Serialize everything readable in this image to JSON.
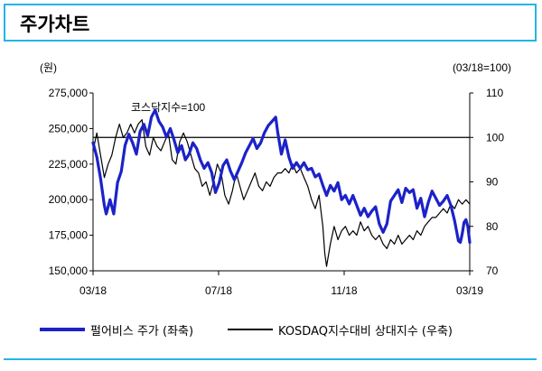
{
  "header": {
    "title": "주가차트"
  },
  "chart_data": {
    "type": "line",
    "left_unit": "(원)",
    "right_unit": "(03/18=100)",
    "annotation": "코스닥지수=100",
    "reference_value": 100,
    "x_labels": [
      "03/18",
      "07/18",
      "11/18",
      "03/19"
    ],
    "left_axis": {
      "min": 150000,
      "max": 275000,
      "ticks": [
        "275,000",
        "250,000",
        "225,000",
        "200,000",
        "175,000",
        "150,000"
      ]
    },
    "right_axis": {
      "min": 70,
      "max": 110,
      "ticks": [
        "110",
        "100",
        "90",
        "80",
        "70"
      ]
    },
    "series": [
      {
        "name": "펄어비스 주가 (좌축)",
        "axis": "left",
        "color": "#1c22c8",
        "values": [
          [
            0,
            240000
          ],
          [
            0.01,
            230000
          ],
          [
            0.02,
            215000
          ],
          [
            0.03,
            196000
          ],
          [
            0.035,
            190000
          ],
          [
            0.045,
            200000
          ],
          [
            0.055,
            190000
          ],
          [
            0.065,
            212000
          ],
          [
            0.075,
            220000
          ],
          [
            0.085,
            238000
          ],
          [
            0.095,
            246000
          ],
          [
            0.105,
            240000
          ],
          [
            0.115,
            232000
          ],
          [
            0.125,
            248000
          ],
          [
            0.135,
            253000
          ],
          [
            0.145,
            245000
          ],
          [
            0.155,
            258000
          ],
          [
            0.165,
            263000
          ],
          [
            0.175,
            255000
          ],
          [
            0.185,
            251000
          ],
          [
            0.195,
            244000
          ],
          [
            0.205,
            250000
          ],
          [
            0.215,
            242000
          ],
          [
            0.225,
            233000
          ],
          [
            0.235,
            238000
          ],
          [
            0.245,
            228000
          ],
          [
            0.255,
            232000
          ],
          [
            0.265,
            240000
          ],
          [
            0.275,
            236000
          ],
          [
            0.285,
            228000
          ],
          [
            0.295,
            222000
          ],
          [
            0.305,
            226000
          ],
          [
            0.315,
            219000
          ],
          [
            0.325,
            205000
          ],
          [
            0.335,
            212000
          ],
          [
            0.345,
            224000
          ],
          [
            0.355,
            228000
          ],
          [
            0.365,
            220000
          ],
          [
            0.375,
            214000
          ],
          [
            0.385,
            220000
          ],
          [
            0.395,
            226000
          ],
          [
            0.405,
            233000
          ],
          [
            0.415,
            238000
          ],
          [
            0.425,
            243000
          ],
          [
            0.435,
            236000
          ],
          [
            0.445,
            240000
          ],
          [
            0.455,
            247000
          ],
          [
            0.465,
            252000
          ],
          [
            0.475,
            255000
          ],
          [
            0.485,
            258000
          ],
          [
            0.49,
            248000
          ],
          [
            0.5,
            232000
          ],
          [
            0.51,
            242000
          ],
          [
            0.52,
            230000
          ],
          [
            0.53,
            222000
          ],
          [
            0.54,
            226000
          ],
          [
            0.55,
            222000
          ],
          [
            0.56,
            226000
          ],
          [
            0.57,
            221000
          ],
          [
            0.58,
            222000
          ],
          [
            0.59,
            216000
          ],
          [
            0.6,
            218000
          ],
          [
            0.61,
            210000
          ],
          [
            0.62,
            203000
          ],
          [
            0.63,
            210000
          ],
          [
            0.64,
            206000
          ],
          [
            0.65,
            212000
          ],
          [
            0.66,
            200000
          ],
          [
            0.67,
            203000
          ],
          [
            0.68,
            197000
          ],
          [
            0.69,
            203000
          ],
          [
            0.7,
            196000
          ],
          [
            0.71,
            189000
          ],
          [
            0.72,
            194000
          ],
          [
            0.73,
            188000
          ],
          [
            0.74,
            192000
          ],
          [
            0.75,
            195000
          ],
          [
            0.76,
            183000
          ],
          [
            0.77,
            177000
          ],
          [
            0.78,
            183000
          ],
          [
            0.79,
            199000
          ],
          [
            0.8,
            203000
          ],
          [
            0.81,
            207000
          ],
          [
            0.82,
            198000
          ],
          [
            0.83,
            208000
          ],
          [
            0.84,
            205000
          ],
          [
            0.85,
            207000
          ],
          [
            0.86,
            194000
          ],
          [
            0.87,
            201000
          ],
          [
            0.88,
            188000
          ],
          [
            0.89,
            198000
          ],
          [
            0.9,
            206000
          ],
          [
            0.91,
            201000
          ],
          [
            0.92,
            196000
          ],
          [
            0.93,
            199000
          ],
          [
            0.94,
            203000
          ],
          [
            0.95,
            196000
          ],
          [
            0.96,
            185000
          ],
          [
            0.97,
            171000
          ],
          [
            0.975,
            170000
          ],
          [
            0.98,
            176000
          ],
          [
            0.985,
            184000
          ],
          [
            0.99,
            186000
          ],
          [
            0.995,
            181000
          ],
          [
            1.0,
            170000
          ]
        ]
      },
      {
        "name": "KOSDAQ지수대비 상대지수 (우축)",
        "axis": "right",
        "color": "#000000",
        "values": [
          [
            0,
            97
          ],
          [
            0.01,
            101
          ],
          [
            0.02,
            96
          ],
          [
            0.03,
            91
          ],
          [
            0.04,
            94
          ],
          [
            0.05,
            96
          ],
          [
            0.06,
            100
          ],
          [
            0.07,
            103
          ],
          [
            0.08,
            100
          ],
          [
            0.09,
            101
          ],
          [
            0.1,
            103
          ],
          [
            0.11,
            101
          ],
          [
            0.12,
            103
          ],
          [
            0.13,
            104
          ],
          [
            0.14,
            98
          ],
          [
            0.15,
            96
          ],
          [
            0.16,
            100
          ],
          [
            0.17,
            98
          ],
          [
            0.18,
            97
          ],
          [
            0.19,
            99
          ],
          [
            0.2,
            101
          ],
          [
            0.21,
            95
          ],
          [
            0.22,
            94
          ],
          [
            0.23,
            99
          ],
          [
            0.24,
            101
          ],
          [
            0.25,
            99
          ],
          [
            0.26,
            96
          ],
          [
            0.27,
            93
          ],
          [
            0.28,
            92
          ],
          [
            0.29,
            89
          ],
          [
            0.3,
            90
          ],
          [
            0.31,
            87
          ],
          [
            0.32,
            90
          ],
          [
            0.33,
            94
          ],
          [
            0.34,
            92
          ],
          [
            0.35,
            87
          ],
          [
            0.36,
            85
          ],
          [
            0.37,
            88
          ],
          [
            0.38,
            92
          ],
          [
            0.39,
            89
          ],
          [
            0.4,
            86
          ],
          [
            0.41,
            88
          ],
          [
            0.42,
            90
          ],
          [
            0.43,
            92
          ],
          [
            0.44,
            89
          ],
          [
            0.45,
            88
          ],
          [
            0.46,
            90
          ],
          [
            0.47,
            89
          ],
          [
            0.48,
            91
          ],
          [
            0.49,
            92
          ],
          [
            0.5,
            92
          ],
          [
            0.51,
            93
          ],
          [
            0.52,
            92
          ],
          [
            0.53,
            94
          ],
          [
            0.54,
            92
          ],
          [
            0.55,
            93
          ],
          [
            0.56,
            91
          ],
          [
            0.57,
            89
          ],
          [
            0.58,
            86
          ],
          [
            0.59,
            84
          ],
          [
            0.6,
            87
          ],
          [
            0.61,
            80
          ],
          [
            0.615,
            74
          ],
          [
            0.62,
            71
          ],
          [
            0.63,
            76
          ],
          [
            0.64,
            80
          ],
          [
            0.65,
            77
          ],
          [
            0.66,
            79
          ],
          [
            0.67,
            80
          ],
          [
            0.68,
            78
          ],
          [
            0.69,
            79
          ],
          [
            0.7,
            78
          ],
          [
            0.71,
            81
          ],
          [
            0.72,
            79
          ],
          [
            0.73,
            80
          ],
          [
            0.74,
            78
          ],
          [
            0.75,
            77
          ],
          [
            0.76,
            78
          ],
          [
            0.77,
            76
          ],
          [
            0.78,
            75
          ],
          [
            0.79,
            77
          ],
          [
            0.8,
            76
          ],
          [
            0.81,
            78
          ],
          [
            0.82,
            76
          ],
          [
            0.83,
            77
          ],
          [
            0.84,
            78
          ],
          [
            0.85,
            77
          ],
          [
            0.86,
            79
          ],
          [
            0.87,
            78
          ],
          [
            0.88,
            80
          ],
          [
            0.89,
            81
          ],
          [
            0.9,
            82
          ],
          [
            0.91,
            82
          ],
          [
            0.92,
            83
          ],
          [
            0.93,
            84
          ],
          [
            0.94,
            83
          ],
          [
            0.95,
            85
          ],
          [
            0.96,
            84
          ],
          [
            0.97,
            86
          ],
          [
            0.98,
            85
          ],
          [
            0.99,
            86
          ],
          [
            1.0,
            85
          ]
        ]
      }
    ]
  }
}
